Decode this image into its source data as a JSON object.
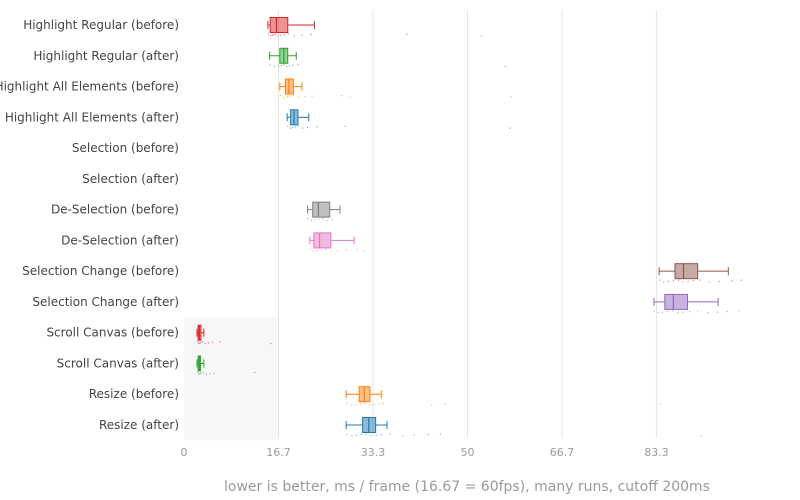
{
  "chart_data": {
    "type": "box",
    "orientation": "horizontal",
    "xlabel": "lower is better, ms / frame (16.67 = 60fps), many runs, cutoff 200ms",
    "xlim": [
      0,
      100
    ],
    "ticks": [
      {
        "value": 0,
        "label": "0"
      },
      {
        "value": 16.67,
        "label": "16.7"
      },
      {
        "value": 33.33,
        "label": "33.3"
      },
      {
        "value": 50,
        "label": "50"
      },
      {
        "value": 66.67,
        "label": "66.7"
      },
      {
        "value": 83.33,
        "label": "83.3"
      }
    ],
    "highlight_band": {
      "from": 0,
      "to": 16.67,
      "rows_from": 10,
      "rows_to": 13
    },
    "series": [
      {
        "name": "Highlight Regular (before)",
        "color": "#d62728",
        "whisker_low": 14.8,
        "q1": 15.2,
        "median": 16.3,
        "q3": 18.3,
        "whisker_high": 23.0,
        "points": [
          14.9,
          15.3,
          15.6,
          15.9,
          16.2,
          16.6,
          17.1,
          17.7,
          18.4,
          19.5,
          20.8,
          22.4,
          39.3,
          52.4
        ]
      },
      {
        "name": "Highlight Regular (after)",
        "color": "#2ca02c",
        "whisker_low": 15.1,
        "q1": 16.9,
        "median": 17.6,
        "q3": 18.3,
        "whisker_high": 19.8,
        "points": [
          15.2,
          15.9,
          16.7,
          17.2,
          17.6,
          18.1,
          18.6,
          19.2,
          20.1,
          56.7
        ]
      },
      {
        "name": "Highlight All Elements (before)",
        "color": "#ff7f0e",
        "whisker_low": 16.9,
        "q1": 17.9,
        "median": 18.5,
        "q3": 19.3,
        "whisker_high": 20.8,
        "points": [
          17.0,
          17.6,
          18.2,
          18.7,
          19.3,
          20.1,
          21.3,
          22.6,
          27.8,
          29.3,
          57.7
        ]
      },
      {
        "name": "Highlight All Elements (after)",
        "color": "#1f77b4",
        "whisker_low": 18.2,
        "q1": 18.8,
        "median": 19.4,
        "q3": 20.1,
        "whisker_high": 22.0,
        "points": [
          18.3,
          18.8,
          19.2,
          19.7,
          20.2,
          20.9,
          21.8,
          23.5,
          28.4,
          57.5
        ]
      },
      {
        "name": "Selection (before)",
        "color": "#999999",
        "whisker_low": null,
        "q1": null,
        "median": null,
        "q3": null,
        "whisker_high": null,
        "points": []
      },
      {
        "name": "Selection (after)",
        "color": "#999999",
        "whisker_low": null,
        "q1": null,
        "median": null,
        "q3": null,
        "whisker_high": null,
        "points": []
      },
      {
        "name": "De-Selection (before)",
        "color": "#7f7f7f",
        "whisker_low": 21.8,
        "q1": 22.7,
        "median": 23.7,
        "q3": 25.7,
        "whisker_high": 27.5,
        "points": [
          21.9,
          22.5,
          23.1,
          23.8,
          24.5,
          25.2,
          26.1
        ]
      },
      {
        "name": "De-Selection (after)",
        "color": "#e377c2",
        "whisker_low": 22.2,
        "q1": 22.9,
        "median": 23.9,
        "q3": 25.9,
        "whisker_high": 30.0,
        "points": [
          22.3,
          22.9,
          23.5,
          24.2,
          25.0,
          25.9,
          27.1,
          28.6,
          30.6,
          31.8
        ]
      },
      {
        "name": "Selection Change (before)",
        "color": "#8c564b",
        "whisker_low": 83.8,
        "q1": 86.6,
        "median": 88.1,
        "q3": 90.6,
        "whisker_high": 96.0,
        "points": [
          83.9,
          84.6,
          85.4,
          86.3,
          87.2,
          88.0,
          88.9,
          89.8,
          91.0,
          92.6,
          94.4,
          96.6,
          98.3
        ]
      },
      {
        "name": "Selection Change (after)",
        "color": "#9467bd",
        "whisker_low": 82.9,
        "q1": 84.8,
        "median": 86.3,
        "q3": 88.8,
        "whisker_high": 94.2,
        "points": [
          82.9,
          83.6,
          84.4,
          85.3,
          86.2,
          87.1,
          88.0,
          89.2,
          90.6,
          92.4,
          94.1,
          95.8,
          97.9
        ]
      },
      {
        "name": "Scroll Canvas (before)",
        "color": "#d62728",
        "whisker_low": 2.3,
        "q1": 2.5,
        "median": 2.7,
        "q3": 3.0,
        "whisker_high": 3.5,
        "points": [
          2.4,
          2.6,
          2.8,
          3.0,
          3.3,
          3.7,
          4.3,
          5.0,
          6.4,
          15.3
        ]
      },
      {
        "name": "Scroll Canvas (after)",
        "color": "#2ca02c",
        "whisker_low": 2.3,
        "q1": 2.5,
        "median": 2.7,
        "q3": 2.9,
        "whisker_high": 3.5,
        "points": [
          2.4,
          2.6,
          2.8,
          3.0,
          3.4,
          3.9,
          4.6,
          5.3,
          12.5
        ]
      },
      {
        "name": "Resize (before)",
        "color": "#ff7f0e",
        "whisker_low": 28.6,
        "q1": 30.9,
        "median": 31.8,
        "q3": 32.8,
        "whisker_high": 34.8,
        "points": [
          28.7,
          29.5,
          30.3,
          31.1,
          31.9,
          32.7,
          33.6,
          34.5,
          35.1,
          43.7,
          46.1,
          84.0
        ]
      },
      {
        "name": "Resize (after)",
        "color": "#1f77b4",
        "whisker_low": 28.6,
        "q1": 31.5,
        "median": 32.6,
        "q3": 33.8,
        "whisker_high": 35.8,
        "points": [
          28.7,
          29.6,
          30.4,
          31.3,
          32.1,
          33.0,
          33.9,
          34.8,
          36.3,
          38.6,
          40.6,
          43.1,
          45.2,
          91.2
        ]
      }
    ]
  }
}
